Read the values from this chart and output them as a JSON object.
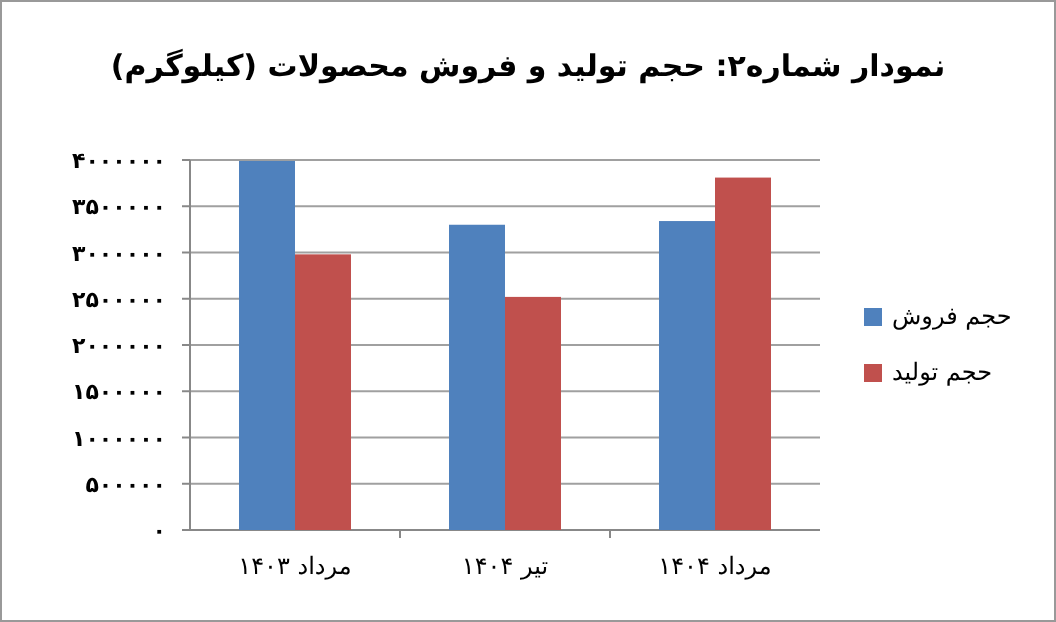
{
  "chart_data": {
    "type": "bar",
    "title": "نمودار شماره۲: حجم تولید و فروش محصولات (کیلوگرم)",
    "categories": [
      "مرداد ۱۴۰۳",
      "تیر ۱۴۰۴",
      "مرداد ۱۴۰۴"
    ],
    "series": [
      {
        "name": "حجم فروش",
        "color": "#4f81bd",
        "values": [
          3990000,
          3300000,
          3340000
        ]
      },
      {
        "name": "حجم تولید",
        "color": "#c0504d",
        "values": [
          2980000,
          2520000,
          3810000
        ]
      }
    ],
    "ylim": [
      0,
      4000000
    ],
    "yticks": [
      {
        "value": 0,
        "label": "۰"
      },
      {
        "value": 500000,
        "label": "۵۰۰۰۰۰"
      },
      {
        "value": 1000000,
        "label": "۱۰۰۰۰۰۰"
      },
      {
        "value": 1500000,
        "label": "۱۵۰۰۰۰۰"
      },
      {
        "value": 2000000,
        "label": "۲۰۰۰۰۰۰"
      },
      {
        "value": 2500000,
        "label": "۲۵۰۰۰۰۰"
      },
      {
        "value": 3000000,
        "label": "۳۰۰۰۰۰۰"
      },
      {
        "value": 3500000,
        "label": "۳۵۰۰۰۰۰"
      },
      {
        "value": 4000000,
        "label": "۴۰۰۰۰۰۰"
      }
    ],
    "grid": "y",
    "legend": "right"
  }
}
